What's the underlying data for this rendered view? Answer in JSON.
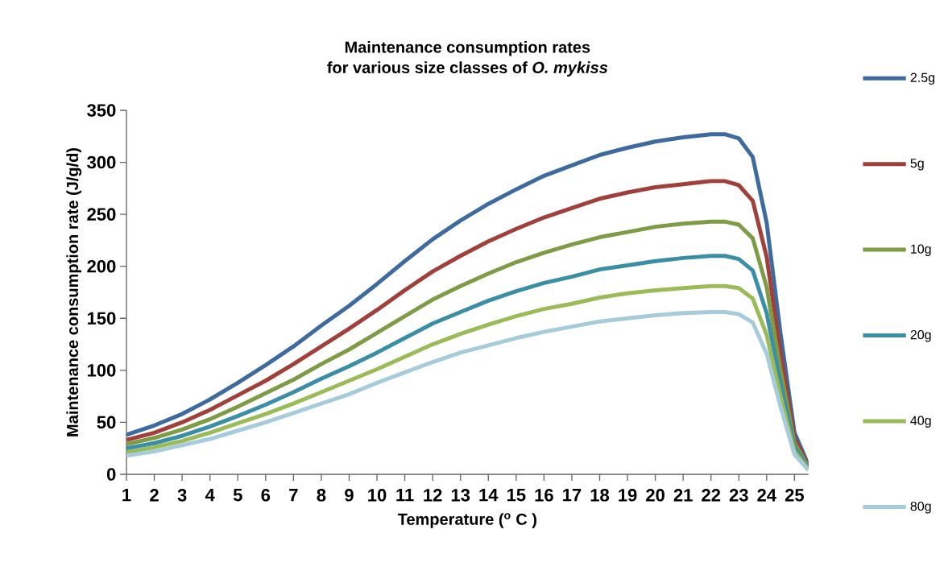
{
  "chart_data": {
    "type": "line",
    "title": "Maintenance consumption rates",
    "subtitle": "for various size classes of *O. mykiss*",
    "xlabel": "Temperature ($^{o}$ C )",
    "ylabel": "Maintenance consumption rate (J/g/d)",
    "x": [
      1,
      2,
      3,
      4,
      5,
      6,
      7,
      8,
      9,
      10,
      11,
      12,
      13,
      14,
      15,
      16,
      17,
      18,
      19,
      20,
      21,
      22,
      22.5,
      23,
      23.5,
      24,
      24.5,
      25,
      25.5
    ],
    "series": [
      {
        "name": "2.5g",
        "color": "#3d6a9f",
        "values": [
          38,
          47,
          58,
          72,
          88,
          105,
          123,
          143,
          162,
          183,
          205,
          226,
          244,
          260,
          274,
          287,
          297,
          307,
          314,
          320,
          324,
          327,
          327,
          323,
          305,
          242,
          135,
          40,
          9
        ]
      },
      {
        "name": "5g",
        "color": "#a13f3b",
        "values": [
          33,
          40,
          50,
          62,
          76,
          90,
          106,
          123,
          140,
          158,
          177,
          195,
          210,
          224,
          236,
          247,
          256,
          265,
          271,
          276,
          279,
          282,
          282,
          278,
          263,
          209,
          116,
          35,
          8
        ]
      },
      {
        "name": "10g",
        "color": "#7e9c45",
        "values": [
          29,
          35,
          43,
          53,
          65,
          78,
          91,
          106,
          120,
          136,
          152,
          168,
          181,
          193,
          204,
          213,
          221,
          228,
          233,
          238,
          241,
          243,
          243,
          240,
          227,
          180,
          100,
          30,
          7
        ]
      },
      {
        "name": "20g",
        "color": "#3a8fa6",
        "values": [
          25,
          30,
          37,
          46,
          56,
          67,
          79,
          92,
          104,
          117,
          131,
          145,
          156,
          167,
          176,
          184,
          190,
          197,
          201,
          205,
          208,
          210,
          210,
          207,
          196,
          155,
          87,
          26,
          6
        ]
      },
      {
        "name": "40g",
        "color": "#9bbb59",
        "values": [
          21,
          26,
          32,
          40,
          49,
          58,
          68,
          79,
          90,
          101,
          113,
          125,
          135,
          144,
          152,
          159,
          164,
          170,
          174,
          177,
          179,
          181,
          181,
          179,
          169,
          134,
          75,
          22,
          5
        ]
      },
      {
        "name": "80g",
        "color": "#a6cbda",
        "values": [
          18,
          22,
          28,
          34,
          42,
          50,
          59,
          68,
          77,
          88,
          98,
          108,
          117,
          124,
          131,
          137,
          142,
          147,
          150,
          153,
          155,
          156,
          156,
          154,
          146,
          116,
          65,
          19,
          4
        ]
      }
    ],
    "xlim": [
      1,
      25.5
    ],
    "xticks": [
      1,
      2,
      3,
      4,
      5,
      6,
      7,
      8,
      9,
      10,
      11,
      12,
      13,
      14,
      15,
      16,
      17,
      18,
      19,
      20,
      21,
      22,
      23,
      24,
      25
    ],
    "ylim": [
      0,
      350
    ],
    "yticks": [
      0,
      50,
      100,
      150,
      200,
      250,
      300,
      350
    ],
    "legend": "right",
    "line_style": "solid",
    "grid": false
  }
}
